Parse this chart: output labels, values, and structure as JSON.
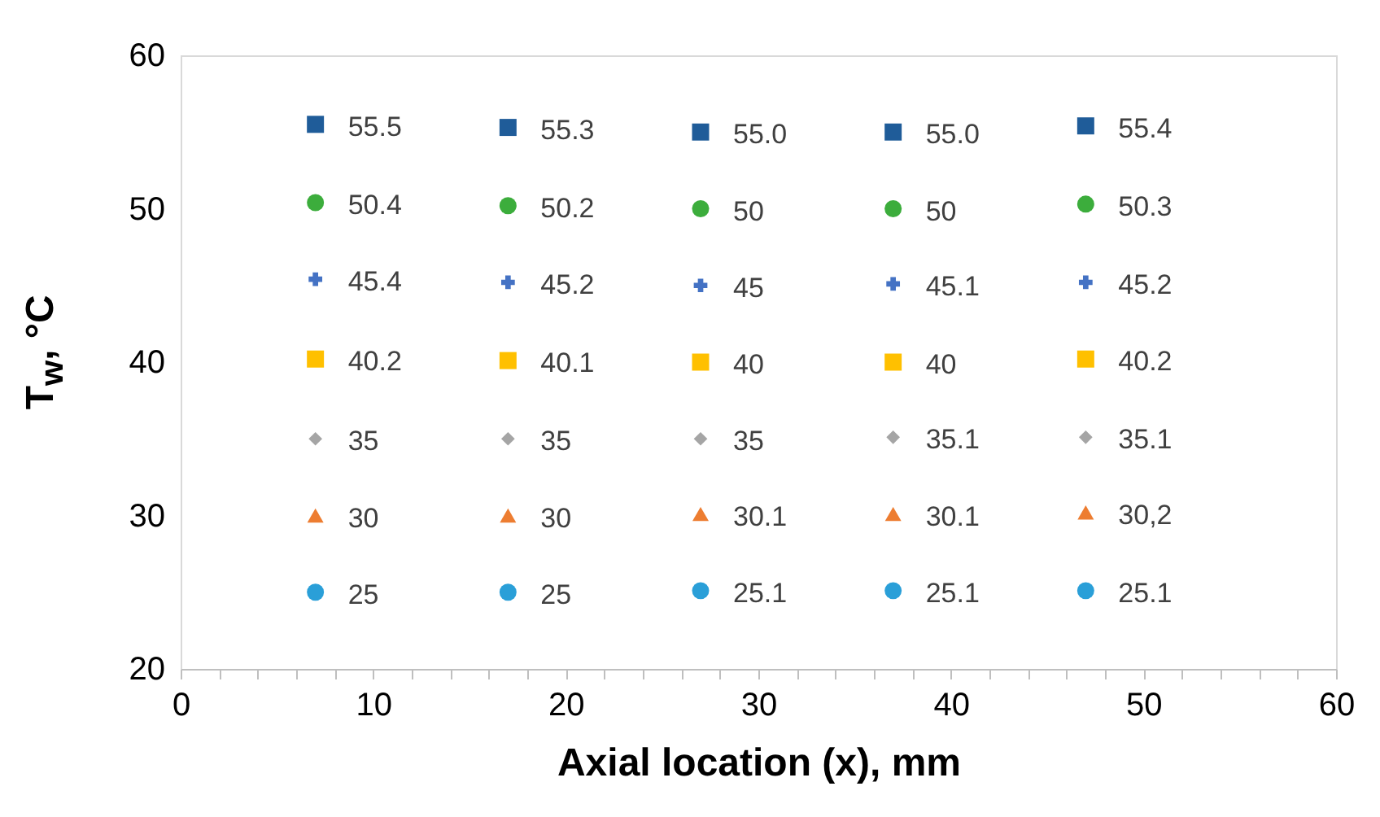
{
  "chart_data": {
    "type": "scatter",
    "xlabel": "Axial location (x), mm",
    "ylabel": "T$_{w}$, °C",
    "x": [
      7,
      17,
      27,
      37,
      47
    ],
    "xlim": [
      0,
      60
    ],
    "ylim": [
      20,
      60
    ],
    "xticks": [
      0,
      {
        "value": 2,
        "label": null
      },
      {
        "value": 4,
        "label": null
      },
      {
        "value": 6,
        "label": null
      },
      {
        "value": 8,
        "label": null
      },
      10,
      {
        "value": 12,
        "label": null
      },
      {
        "value": 14,
        "label": null
      },
      {
        "value": 16,
        "label": null
      },
      {
        "value": 18,
        "label": null
      },
      20,
      {
        "value": 22,
        "label": null
      },
      {
        "value": 24,
        "label": null
      },
      {
        "value": 26,
        "label": null
      },
      {
        "value": 28,
        "label": null
      },
      30,
      {
        "value": 32,
        "label": null
      },
      {
        "value": 34,
        "label": null
      },
      {
        "value": 36,
        "label": null
      },
      {
        "value": 38,
        "label": null
      },
      40,
      {
        "value": 42,
        "label": null
      },
      {
        "value": 44,
        "label": null
      },
      {
        "value": 46,
        "label": null
      },
      {
        "value": 48,
        "label": null
      },
      50,
      {
        "value": 52,
        "label": null
      },
      {
        "value": 54,
        "label": null
      },
      {
        "value": 56,
        "label": null
      },
      {
        "value": 58,
        "label": null
      },
      60
    ],
    "yticks": [
      20,
      30,
      40,
      50,
      60
    ],
    "grid": false,
    "legend": false,
    "series": [
      {
        "color": "#1f5c99",
        "marker": "square",
        "values": [
          55.5,
          55.3,
          55.0,
          55.0,
          55.4
        ],
        "value_labels": [
          "55.5",
          "55.3",
          "55.0",
          "55.0",
          "55.4"
        ]
      },
      {
        "color": "#3cad3c",
        "marker": "circle",
        "values": [
          50.4,
          50.2,
          50,
          50,
          50.3
        ],
        "value_labels": [
          "50.4",
          "50.2",
          "50",
          "50",
          "50.3"
        ]
      },
      {
        "color": "#4472c4",
        "marker": "cross",
        "values": [
          45.4,
          45.2,
          45,
          45.1,
          45.2
        ],
        "value_labels": [
          "45.4",
          "45.2",
          "45",
          "45.1",
          "45.2"
        ]
      },
      {
        "color": "#ffc000",
        "marker": "square",
        "values": [
          40.2,
          40.1,
          40,
          40,
          40.2
        ],
        "value_labels": [
          "40.2",
          "40.1",
          "40",
          "40",
          "40.2"
        ]
      },
      {
        "color": "#a5a5a5",
        "marker": "diamond",
        "values": [
          35,
          35,
          35,
          35.1,
          35.1
        ],
        "value_labels": [
          "35",
          "35",
          "35",
          "35.1",
          "35.1"
        ]
      },
      {
        "color": "#ed7d31",
        "marker": "triangle",
        "values": [
          30,
          30,
          30.1,
          30.1,
          30.2
        ],
        "value_labels": [
          "30",
          "30",
          "30.1",
          "30.1",
          "30,2"
        ]
      },
      {
        "color": "#2a9fd8",
        "marker": "circle",
        "values": [
          25,
          25,
          25.1,
          25.1,
          25.1
        ],
        "value_labels": [
          "25",
          "25",
          "25.1",
          "25.1",
          "25.1"
        ]
      }
    ]
  }
}
